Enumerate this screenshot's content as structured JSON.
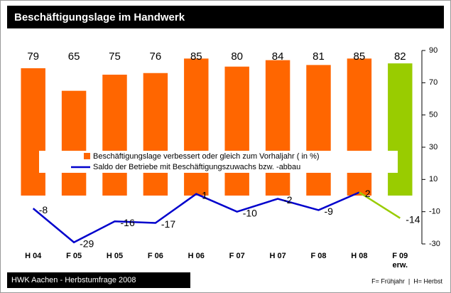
{
  "chart_data": {
    "type": "bar_line",
    "title": "Beschäftigungslage im Handwerk",
    "categories": [
      "H 04",
      "F 05",
      "H 05",
      "F 06",
      "H 06",
      "F 07",
      "H 07",
      "F 08",
      "H 08",
      "F 09 erw."
    ],
    "series": [
      {
        "name": "Beschäftigungslage verbessert oder gleich zum Vorhaljahr ( in %)",
        "type": "bar",
        "color": "#ff6600",
        "colors": [
          "#ff6600",
          "#ff6600",
          "#ff6600",
          "#ff6600",
          "#ff6600",
          "#ff6600",
          "#ff6600",
          "#ff6600",
          "#ff6600",
          "#99cc00"
        ],
        "values": [
          79,
          65,
          75,
          76,
          85,
          80,
          84,
          81,
          85,
          82
        ]
      },
      {
        "name": "Saldo der Betriebe mit Beschäftigungszuwachs bzw. -abbau",
        "type": "line",
        "color": "#0000cc",
        "colors": [
          "#0000cc",
          "#0000cc",
          "#0000cc",
          "#0000cc",
          "#0000cc",
          "#0000cc",
          "#0000cc",
          "#0000cc",
          "#0000cc",
          "#99cc00"
        ],
        "values": [
          -8,
          -29,
          -16,
          -17,
          1,
          -10,
          -2,
          -9,
          2,
          -14
        ]
      }
    ],
    "ylim": [
      -30,
      90
    ],
    "yticks": [
      90,
      70,
      50,
      30,
      10,
      -10,
      -30
    ],
    "source": "HWK Aachen - Herbstumfrage 2008",
    "note": "F= Frühjahr  |  H= Herbst"
  }
}
